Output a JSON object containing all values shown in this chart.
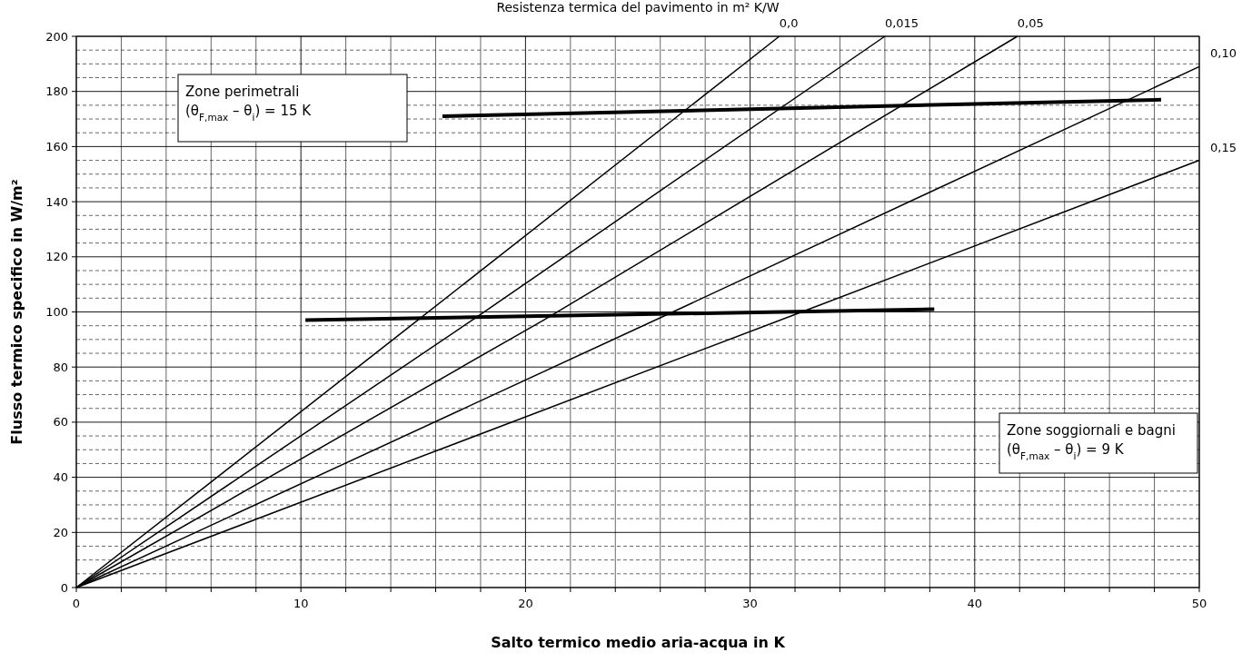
{
  "chart_data": {
    "type": "line",
    "xlabel": "Salto termico medio aria-acqua in K",
    "ylabel": "Flusso termico specifico in W/m²",
    "xlim": [
      0,
      50
    ],
    "ylim": [
      0,
      200
    ],
    "xticks": [
      0,
      {
        "value": 2,
        "label": null
      },
      {
        "value": 4,
        "label": null
      },
      {
        "value": 6,
        "label": null
      },
      {
        "value": 8,
        "label": null
      },
      10,
      {
        "value": 12,
        "label": null
      },
      {
        "value": 14,
        "label": null
      },
      {
        "value": 16,
        "label": null
      },
      {
        "value": 18,
        "label": null
      },
      20,
      {
        "value": 22,
        "label": null
      },
      {
        "value": 24,
        "label": null
      },
      {
        "value": 26,
        "label": null
      },
      {
        "value": 28,
        "label": null
      },
      30,
      {
        "value": 32,
        "label": null
      },
      {
        "value": 34,
        "label": null
      },
      {
        "value": 36,
        "label": null
      },
      {
        "value": 38,
        "label": null
      },
      40,
      {
        "value": 42,
        "label": null
      },
      {
        "value": 44,
        "label": null
      },
      {
        "value": 46,
        "label": null
      },
      {
        "value": 48,
        "label": null
      },
      50
    ],
    "yticks": [
      0,
      {
        "value": 5,
        "label": null
      },
      {
        "value": 10,
        "label": null
      },
      {
        "value": 15,
        "label": null
      },
      20,
      {
        "value": 25,
        "label": null
      },
      {
        "value": 30,
        "label": null
      },
      {
        "value": 35,
        "label": null
      },
      40,
      {
        "value": 45,
        "label": null
      },
      {
        "value": 50,
        "label": null
      },
      {
        "value": 55,
        "label": null
      },
      60,
      {
        "value": 65,
        "label": null
      },
      {
        "value": 70,
        "label": null
      },
      {
        "value": 75,
        "label": null
      },
      80,
      {
        "value": 85,
        "label": null
      },
      {
        "value": 90,
        "label": null
      },
      {
        "value": 95,
        "label": null
      },
      100,
      {
        "value": 105,
        "label": null
      },
      {
        "value": 110,
        "label": null
      },
      {
        "value": 115,
        "label": null
      },
      120,
      {
        "value": 125,
        "label": null
      },
      {
        "value": 130,
        "label": null
      },
      {
        "value": 135,
        "label": null
      },
      140,
      {
        "value": 145,
        "label": null
      },
      {
        "value": 150,
        "label": null
      },
      {
        "value": 155,
        "label": null
      },
      160,
      {
        "value": 165,
        "label": null
      },
      {
        "value": 170,
        "label": null
      },
      {
        "value": 175,
        "label": null
      },
      180,
      {
        "value": 185,
        "label": null
      },
      {
        "value": 190,
        "label": null
      },
      {
        "value": 195,
        "label": null
      },
      200
    ],
    "grid": true,
    "marker": "none",
    "line_style": "solid",
    "series": [
      {
        "name": "0,0",
        "color": "#000000",
        "x": [
          0,
          15.2,
          31.3
        ],
        "values": [
          0,
          97,
          200
        ]
      },
      {
        "name": "0,015",
        "color": "#000000",
        "x": [
          0,
          17.8,
          36
        ],
        "values": [
          0,
          98,
          200
        ]
      },
      {
        "name": "0,05",
        "color": "#000000",
        "x": [
          0,
          20.8,
          41.9
        ],
        "values": [
          0,
          97,
          200
        ]
      },
      {
        "name": "0,10",
        "color": "#000000",
        "x": [
          0,
          26.3,
          50
        ],
        "values": [
          0,
          99,
          189
        ]
      },
      {
        "name": "0,15",
        "color": "#000000",
        "x": [
          0,
          32.3,
          50
        ],
        "values": [
          0,
          100,
          155
        ]
      },
      {
        "color": "#000000",
        "x": [
          16.3,
          48.3
        ],
        "values": [
          171,
          177
        ]
      },
      {
        "color": "#000000",
        "x": [
          10.2,
          38.2
        ],
        "values": [
          97,
          101
        ]
      }
    ],
    "annotations": [
      "Resistenza termica del pavimento in m² K/W",
      "Zone perimetrali\n(θ$_{F,max}$ – θ$_{i}$) = 15 K",
      "Zone soggiornali e bagni\n(θ$_{F,max}$ – θ$_{i}$) = 9 K"
    ]
  }
}
